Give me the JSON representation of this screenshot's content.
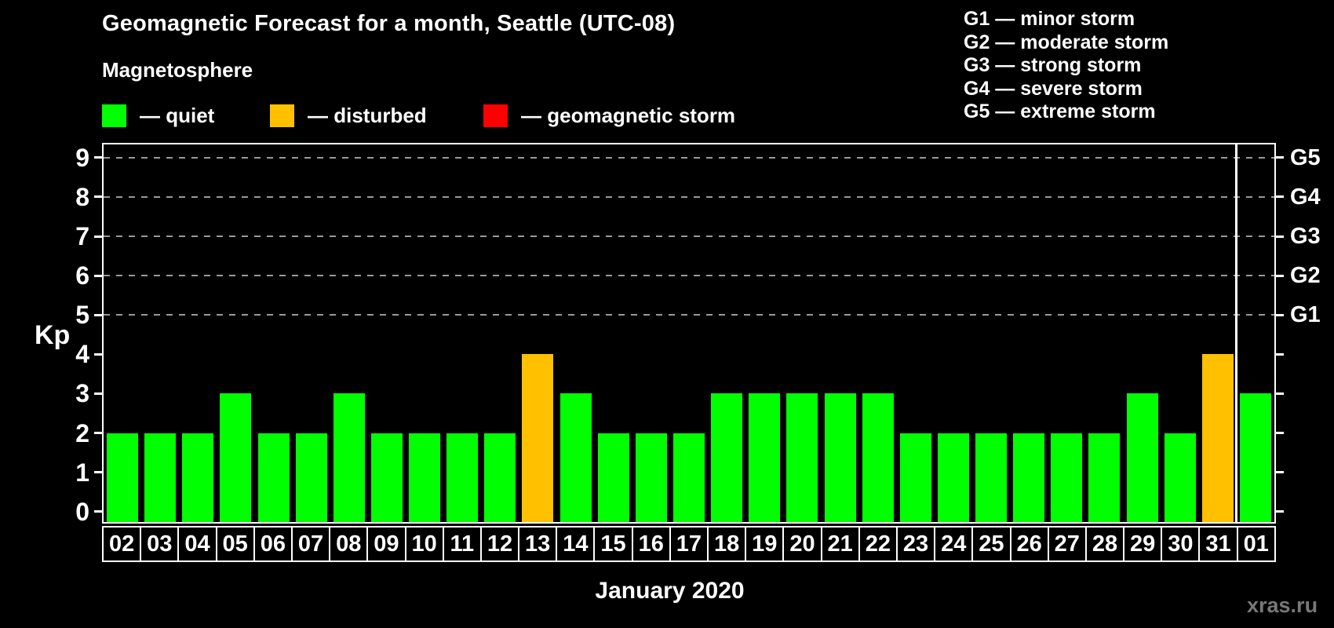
{
  "title": "Geomagnetic Forecast for a month, Seattle (UTC-08)",
  "magnetosphere_legend": {
    "heading": "Magnetosphere",
    "items": [
      {
        "name": "quiet",
        "label": "— quiet",
        "color": "#00ff00"
      },
      {
        "name": "disturbed",
        "label": "— disturbed",
        "color": "#ffc000"
      },
      {
        "name": "storm",
        "label": "— geomagnetic storm",
        "color": "#ff0000"
      }
    ]
  },
  "g_scale_legend": [
    "G1 — minor storm",
    "G2 — moderate storm",
    "G3 — strong storm",
    "G4 — severe storm",
    "G5 — extreme storm"
  ],
  "watermark": "xras.ru",
  "chart_data": {
    "type": "bar",
    "title": "Geomagnetic Forecast for a month, Seattle (UTC-08)",
    "xlabel": "January 2020",
    "ylabel": "Kp",
    "ylim": [
      0,
      9
    ],
    "y_ticks": [
      0,
      1,
      2,
      3,
      4,
      5,
      6,
      7,
      8,
      9
    ],
    "gridlines_kp": [
      5,
      6,
      7,
      8,
      9
    ],
    "grid": "dashed-above-kp5-only",
    "legend_position": "top",
    "right_axis": [
      {
        "kp": 5,
        "label": "G1"
      },
      {
        "kp": 6,
        "label": "G2"
      },
      {
        "kp": 7,
        "label": "G3"
      },
      {
        "kp": 8,
        "label": "G4"
      },
      {
        "kp": 9,
        "label": "G5"
      }
    ],
    "status_colors": {
      "quiet": "#00ff00",
      "disturbed": "#ffc000",
      "storm": "#ff0000"
    },
    "categories": [
      "02",
      "03",
      "04",
      "05",
      "06",
      "07",
      "08",
      "09",
      "10",
      "11",
      "12",
      "13",
      "14",
      "15",
      "16",
      "17",
      "18",
      "19",
      "20",
      "21",
      "22",
      "23",
      "24",
      "25",
      "26",
      "27",
      "28",
      "29",
      "30",
      "31",
      "01"
    ],
    "values": [
      2,
      2,
      2,
      3,
      2,
      2,
      3,
      2,
      2,
      2,
      2,
      4,
      3,
      2,
      2,
      2,
      3,
      3,
      3,
      3,
      3,
      2,
      2,
      2,
      2,
      2,
      2,
      3,
      2,
      4,
      3
    ],
    "statuses": [
      "quiet",
      "quiet",
      "quiet",
      "quiet",
      "quiet",
      "quiet",
      "quiet",
      "quiet",
      "quiet",
      "quiet",
      "quiet",
      "disturbed",
      "quiet",
      "quiet",
      "quiet",
      "quiet",
      "quiet",
      "quiet",
      "quiet",
      "quiet",
      "quiet",
      "quiet",
      "quiet",
      "quiet",
      "quiet",
      "quiet",
      "quiet",
      "quiet",
      "quiet",
      "disturbed",
      "quiet"
    ],
    "month_separator_before_index": 30
  }
}
